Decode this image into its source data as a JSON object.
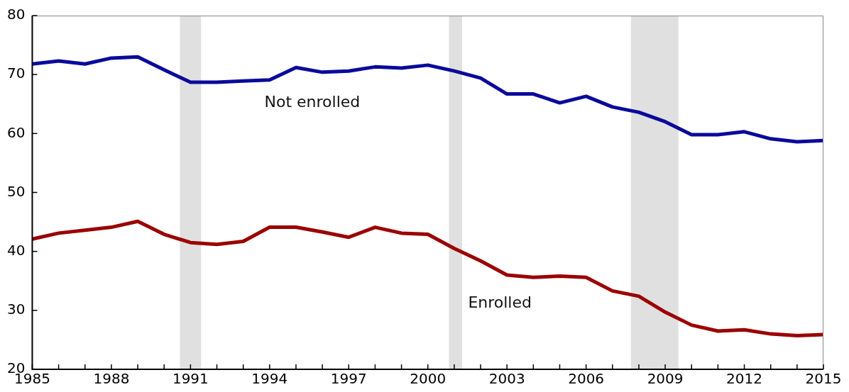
{
  "chart_data": {
    "type": "line",
    "x": [
      1985,
      1986,
      1987,
      1988,
      1989,
      1990,
      1991,
      1992,
      1993,
      1994,
      1995,
      1996,
      1997,
      1998,
      1999,
      2000,
      2001,
      2002,
      2003,
      2004,
      2005,
      2006,
      2007,
      2008,
      2009,
      2010,
      2011,
      2012,
      2013,
      2014,
      2015
    ],
    "series": [
      {
        "name": "Not enrolled",
        "color": "#0a0a9b",
        "values": [
          71.8,
          72.3,
          71.8,
          72.8,
          73.0,
          70.8,
          68.7,
          68.7,
          68.9,
          69.1,
          71.2,
          70.4,
          70.6,
          71.3,
          71.1,
          71.6,
          70.6,
          69.4,
          66.7,
          66.7,
          65.2,
          66.3,
          64.5,
          63.6,
          62.0,
          59.8,
          59.8,
          60.3,
          59.1,
          58.6,
          58.8
        ]
      },
      {
        "name": "Enrolled",
        "color": "#9b0000",
        "values": [
          42.1,
          43.1,
          43.6,
          44.1,
          45.1,
          42.9,
          41.5,
          41.2,
          41.7,
          44.1,
          44.1,
          43.3,
          42.4,
          44.1,
          43.1,
          42.9,
          40.5,
          38.4,
          36.0,
          35.6,
          35.8,
          35.6,
          33.3,
          32.4,
          29.7,
          27.5,
          26.5,
          26.7,
          26.0,
          25.7,
          25.9
        ]
      }
    ],
    "xlim": [
      1985,
      2015
    ],
    "xticks": [
      1985,
      {
        "value": 1986,
        "label": null
      },
      {
        "value": 1987,
        "label": null
      },
      1988,
      {
        "value": 1989,
        "label": null
      },
      {
        "value": 1990,
        "label": null
      },
      1991,
      {
        "value": 1992,
        "label": null
      },
      {
        "value": 1993,
        "label": null
      },
      1994,
      {
        "value": 1995,
        "label": null
      },
      {
        "value": 1996,
        "label": null
      },
      1997,
      {
        "value": 1998,
        "label": null
      },
      {
        "value": 1999,
        "label": null
      },
      2000,
      {
        "value": 2001,
        "label": null
      },
      {
        "value": 2002,
        "label": null
      },
      2003,
      {
        "value": 2004,
        "label": null
      },
      {
        "value": 2005,
        "label": null
      },
      2006,
      {
        "value": 2007,
        "label": null
      },
      {
        "value": 2008,
        "label": null
      },
      2009,
      {
        "value": 2010,
        "label": null
      },
      {
        "value": 2011,
        "label": null
      },
      2012,
      {
        "value": 2013,
        "label": null
      },
      {
        "value": 2014,
        "label": null
      },
      2015
    ],
    "ylim": [
      20,
      80
    ],
    "yticks": [
      20,
      30,
      40,
      50,
      60,
      70,
      80
    ],
    "bands": [
      {
        "axis": "x",
        "from": 1990.6,
        "to": 1991.4,
        "color": "#e0e0e0"
      },
      {
        "axis": "x",
        "from": 2000.8,
        "to": 2001.3,
        "color": "#e0e0e0"
      },
      {
        "axis": "x",
        "from": 2007.7,
        "to": 2009.5,
        "color": "#e0e0e0"
      }
    ],
    "grid": false,
    "legend": false,
    "marker": "none",
    "line_style": "solid"
  }
}
